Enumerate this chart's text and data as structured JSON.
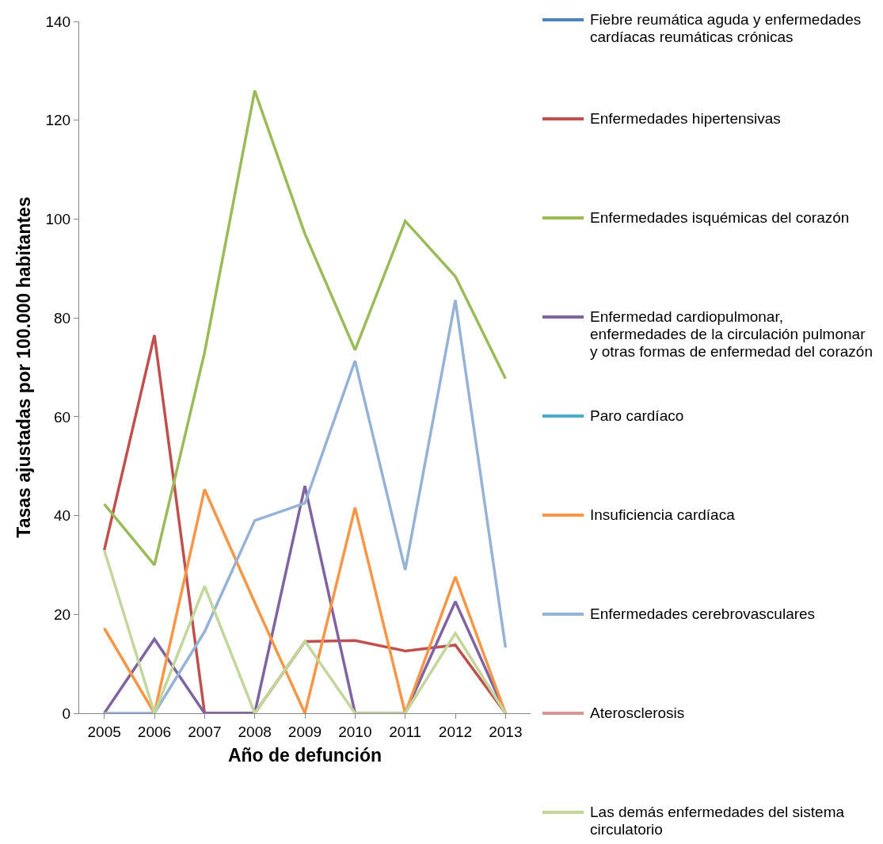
{
  "chart_data": {
    "type": "line",
    "xlabel": "Año de defunción",
    "ylabel": "Tasas ajustadas por 100.000 habitantes",
    "categories": [
      "2005",
      "2006",
      "2007",
      "2008",
      "2009",
      "2010",
      "2011",
      "2012",
      "2013"
    ],
    "ylim": [
      0,
      140
    ],
    "yticks": [
      0,
      20,
      40,
      60,
      80,
      100,
      120,
      140
    ],
    "grid": false,
    "legend": "right",
    "marker": "none",
    "line_style": "solid",
    "series": [
      {
        "name": "Fiebre reumática aguda y enfermedades cardíacas reumáticas crónicas",
        "color": "#4f81bd",
        "values": [
          null,
          null,
          null,
          null,
          null,
          null,
          null,
          null,
          null
        ]
      },
      {
        "name": "Enfermedades hipertensivas",
        "color": "#c0504d",
        "values": [
          33,
          76.5,
          0,
          0,
          14.5,
          14.7,
          12.6,
          13.8,
          0
        ]
      },
      {
        "name": "Enfermedades isquémicas del corazón",
        "color": "#9bbb59",
        "values": [
          42.3,
          30,
          73,
          126,
          97,
          73.5,
          99.6,
          88.4,
          67.7
        ]
      },
      {
        "name": "Enfermedad cardiopulmonar, enfermedades de la circulación pulmonar y otras formas de enfermedad del corazón",
        "color": "#8064a2",
        "values": [
          0,
          15,
          0,
          0,
          46,
          0,
          0,
          22.6,
          0
        ]
      },
      {
        "name": "Paro cardíaco",
        "color": "#4bacc6",
        "values": [
          null,
          null,
          null,
          null,
          null,
          null,
          null,
          null,
          null
        ]
      },
      {
        "name": "Insuficiencia cardíaca",
        "color": "#f79646",
        "values": [
          17.2,
          0,
          45.3,
          22.4,
          0,
          41.6,
          0,
          27.6,
          0
        ]
      },
      {
        "name": "Enfermedades cerebrovasculares",
        "color": "#95b3d7",
        "values": [
          0,
          0,
          16.5,
          39,
          42.5,
          71.3,
          29,
          83.6,
          13.3
        ]
      },
      {
        "name": "Aterosclerosis",
        "color": "#d99694",
        "values": [
          null,
          null,
          null,
          null,
          null,
          null,
          null,
          null,
          null
        ]
      },
      {
        "name": "Las demás enfermedades del sistema circulatorio",
        "color": "#c3d69b",
        "values": [
          33,
          0,
          25.7,
          0,
          14.6,
          0,
          0,
          16.2,
          0
        ]
      }
    ]
  }
}
